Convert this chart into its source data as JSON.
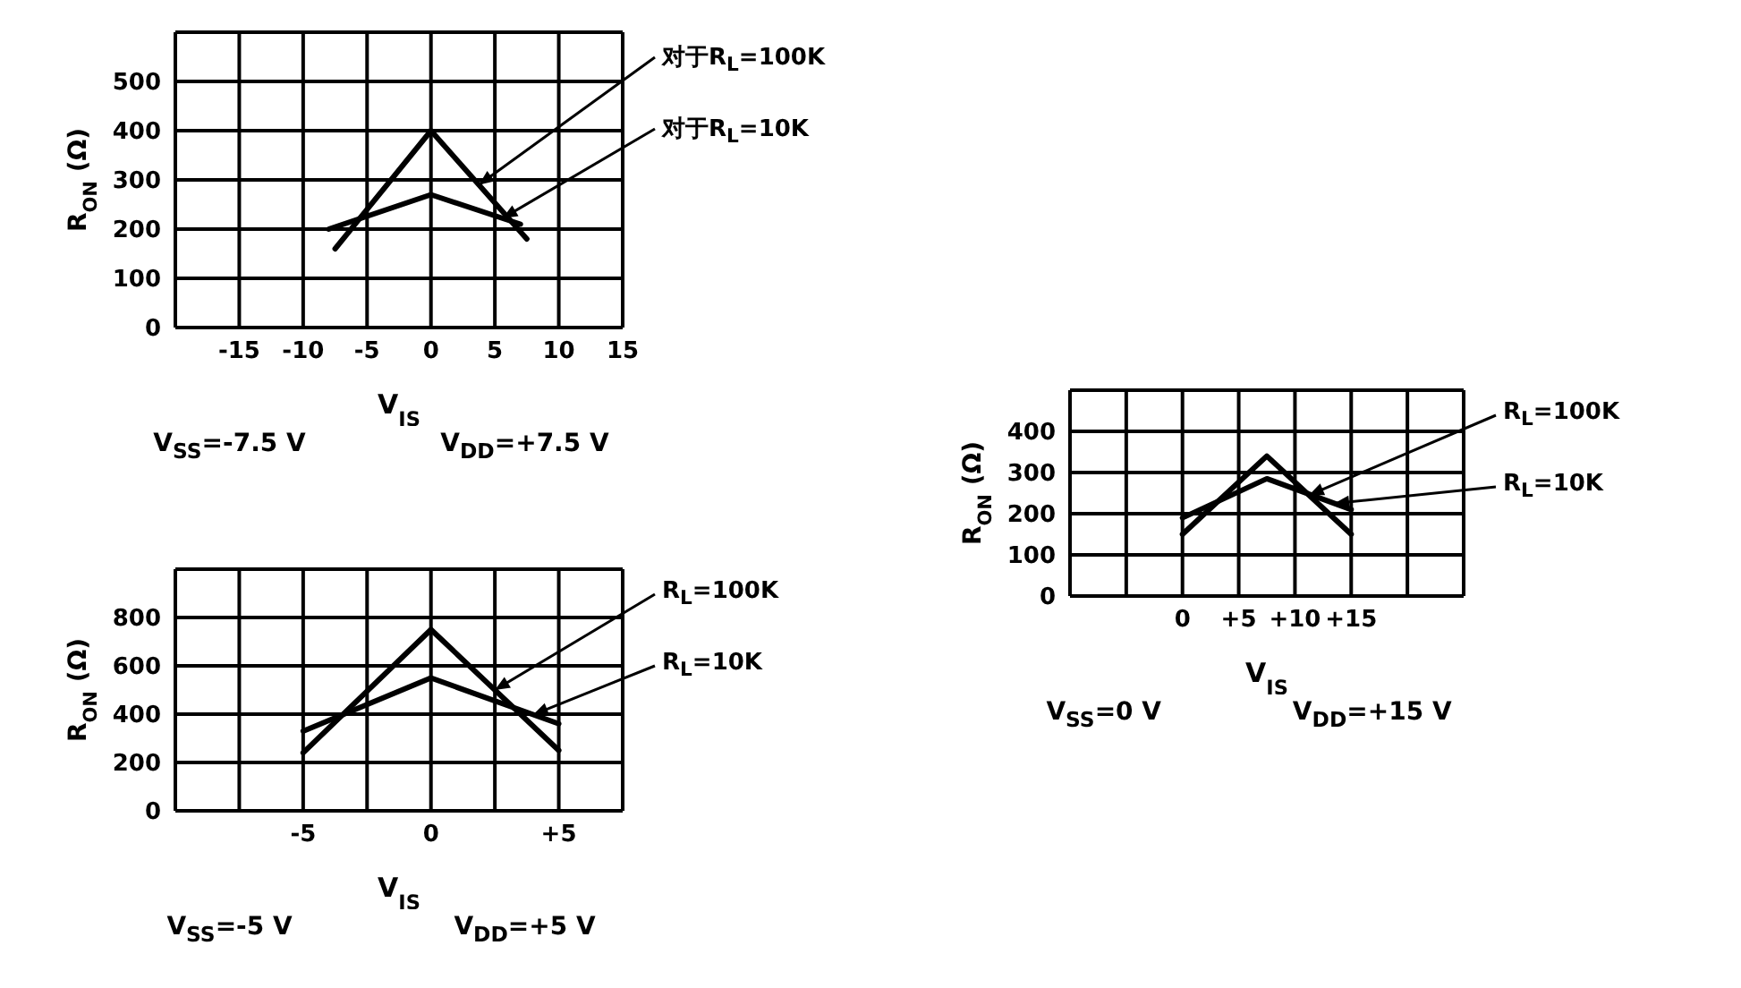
{
  "chart_data": [
    {
      "type": "line",
      "xlabel": "V$_{IS}$",
      "ylabel": "R$_{ON}$ (Ω)",
      "xlim": [
        -20,
        15
      ],
      "xticks": [
        {
          "value": -20,
          "label": null
        },
        -15,
        -10,
        -5,
        0,
        5,
        10,
        15
      ],
      "ylim": [
        0,
        600
      ],
      "yticks": [
        0,
        100,
        200,
        300,
        400,
        500,
        {
          "value": 600,
          "label": null
        }
      ],
      "grid": true,
      "marker": "none",
      "line_style": "solid",
      "series": [
        {
          "name": "对于R$_{L}$=100K",
          "color": "#000000",
          "x": [
            -7.5,
            0,
            7.5
          ],
          "values": [
            160,
            400,
            180
          ]
        },
        {
          "name": "对于R$_{L}$=10K",
          "color": "#000000",
          "x": [
            -8,
            0,
            7
          ],
          "values": [
            200,
            270,
            210
          ]
        }
      ],
      "annotations": [
        "V$_{SS}$=-7.5 V",
        "V$_{DD}$=+7.5 V"
      ]
    },
    {
      "type": "line",
      "xlabel": "V$_{IS}$",
      "ylabel": "R$_{ON}$ (Ω)",
      "xlim": [
        -10,
        7.5
      ],
      "xticks": [
        {
          "value": -10,
          "label": null
        },
        {
          "value": -7.5,
          "label": null
        },
        -5,
        {
          "value": -2.5,
          "label": null
        },
        0,
        {
          "value": 2.5,
          "label": null
        },
        {
          "value": 5,
          "label": "+5"
        },
        {
          "value": 7.5,
          "label": null
        }
      ],
      "ylim": [
        0,
        1000
      ],
      "yticks": [
        0,
        200,
        400,
        600,
        800,
        {
          "value": 1000,
          "label": null
        }
      ],
      "grid": true,
      "marker": "none",
      "line_style": "solid",
      "series": [
        {
          "name": "R$_{L}$=100K",
          "color": "#000000",
          "x": [
            -5,
            0,
            5
          ],
          "values": [
            240,
            750,
            250
          ]
        },
        {
          "name": "R$_{L}$=10K",
          "color": "#000000",
          "x": [
            -5,
            0,
            5
          ],
          "values": [
            330,
            550,
            360
          ]
        }
      ],
      "annotations": [
        "V$_{SS}$=-5 V",
        "V$_{DD}$=+5 V"
      ]
    },
    {
      "type": "line",
      "xlabel": "V$_{IS}$",
      "ylabel": "R$_{ON}$ (Ω)",
      "xlim": [
        -10,
        25
      ],
      "xticks": [
        {
          "value": -10,
          "label": null
        },
        {
          "value": -5,
          "label": null
        },
        0,
        {
          "value": 5,
          "label": "+5"
        },
        {
          "value": 10,
          "label": "+10"
        },
        {
          "value": 15,
          "label": "+15"
        },
        {
          "value": 20,
          "label": null
        },
        {
          "value": 25,
          "label": null
        }
      ],
      "ylim": [
        0,
        500
      ],
      "yticks": [
        0,
        100,
        200,
        300,
        400,
        {
          "value": 500,
          "label": null
        }
      ],
      "grid": true,
      "marker": "none",
      "line_style": "solid",
      "series": [
        {
          "name": "R$_{L}$=100K",
          "color": "#000000",
          "x": [
            0,
            7.5,
            15
          ],
          "values": [
            150,
            340,
            150
          ]
        },
        {
          "name": "R$_{L}$=10K",
          "color": "#000000",
          "x": [
            0,
            7.5,
            15
          ],
          "values": [
            190,
            285,
            210
          ]
        }
      ],
      "annotations": [
        "V$_{SS}$=0 V",
        "V$_{DD}$=+15 V"
      ]
    }
  ]
}
